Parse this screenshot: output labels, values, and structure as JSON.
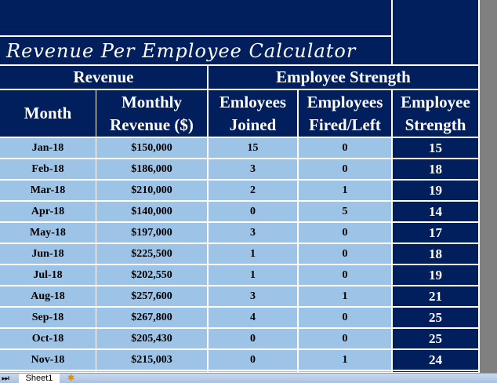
{
  "title": "Revenue Per Employee Calculator",
  "group_headers": [
    "Revenue",
    "Employee Strength"
  ],
  "columns": [
    "Month",
    "Monthly Revenue ($)",
    "Emloyees Joined",
    "Employees Fired/Left",
    "Employee Strength"
  ],
  "rows": [
    [
      "Jan-18",
      "$150,000",
      "15",
      "0",
      "15"
    ],
    [
      "Feb-18",
      "$186,000",
      "3",
      "0",
      "18"
    ],
    [
      "Mar-18",
      "$210,000",
      "2",
      "1",
      "19"
    ],
    [
      "Apr-18",
      "$140,000",
      "0",
      "5",
      "14"
    ],
    [
      "May-18",
      "$197,000",
      "3",
      "0",
      "17"
    ],
    [
      "Jun-18",
      "$225,500",
      "1",
      "0",
      "18"
    ],
    [
      "Jul-18",
      "$202,550",
      "1",
      "0",
      "19"
    ],
    [
      "Aug-18",
      "$257,600",
      "3",
      "1",
      "21"
    ],
    [
      "Sep-18",
      "$267,800",
      "4",
      "0",
      "25"
    ],
    [
      "Oct-18",
      "$205,430",
      "0",
      "0",
      "25"
    ],
    [
      "Nov-18",
      "$215,003",
      "0",
      "1",
      "24"
    ]
  ],
  "sheet_tabs": [
    "Sheet1"
  ],
  "colors": {
    "dark": "#001f5c",
    "light": "#9dc3e6"
  }
}
